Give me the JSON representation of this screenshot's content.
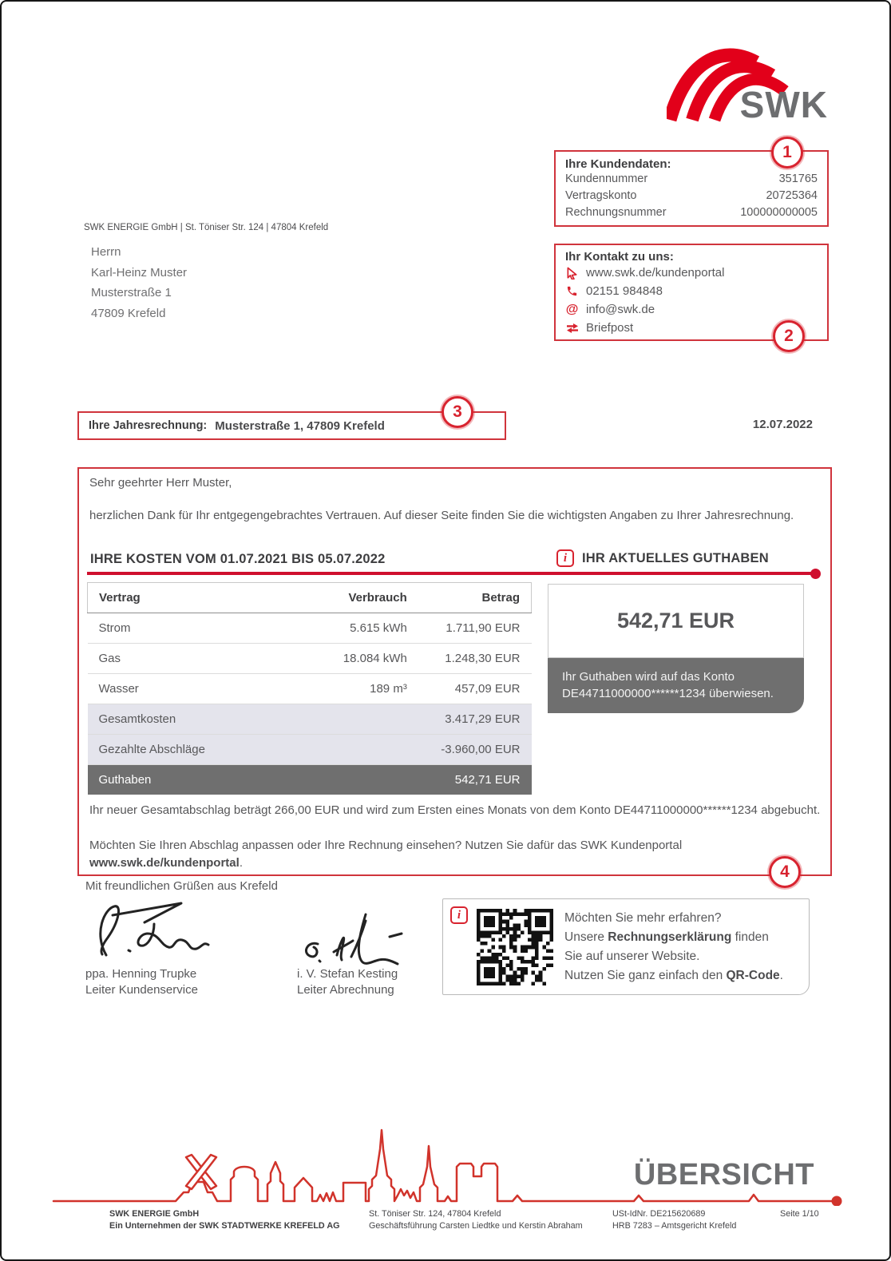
{
  "logo": {
    "brand": "SWK"
  },
  "date": "12.07.2022",
  "sender_line": "SWK ENERGIE GmbH | St. Töniser Str. 124 | 47804 Krefeld",
  "recipient": {
    "line1": "Herrn",
    "line2": "Karl-Heinz Muster",
    "line3": "Musterstraße 1",
    "line4": "47809 Krefeld"
  },
  "customer_box": {
    "badge": "1",
    "title": "Ihre Kundendaten:",
    "rows": [
      {
        "label": "Kundennummer",
        "value": "351765"
      },
      {
        "label": "Vertragskonto",
        "value": "20725364"
      },
      {
        "label": "Rechnungsnummer",
        "value": "100000000005"
      }
    ]
  },
  "contact_box": {
    "badge": "2",
    "title": "Ihr Kontakt zu uns:",
    "items": [
      {
        "icon": "cursor-icon",
        "text": "www.swk.de/kundenportal"
      },
      {
        "icon": "phone-icon",
        "text": "02151 984848"
      },
      {
        "icon": "at-icon",
        "glyph": "@",
        "text": "info@swk.de"
      },
      {
        "icon": "mail-arrows-icon",
        "text": "Briefpost"
      }
    ]
  },
  "invoice_bar": {
    "badge": "3",
    "label": "Ihre Jahresrechnung:",
    "value": "Musterstraße 1, 47809 Krefeld"
  },
  "letter": {
    "badge": "4",
    "greeting": "Sehr geehrter Herr Muster,",
    "intro": "herzlichen Dank für Ihr entgegengebrachtes Vertrauen. Auf dieser Seite finden Sie die wichtigsten Angaben zu Ihrer Jahresrechnung.",
    "costs_heading": "IHRE KOSTEN VOM 01.07.2021 BIS 05.07.2022",
    "balance_heading": "IHR AKTUELLES GUTHABEN",
    "info_glyph": "i",
    "table": {
      "headers": [
        "Vertrag",
        "Verbrauch",
        "Betrag"
      ],
      "rows": [
        [
          "Strom",
          "5.615 kWh",
          "1.711,90 EUR"
        ],
        [
          "Gas",
          "18.084 kWh",
          "1.248,30 EUR"
        ],
        [
          "Wasser",
          "189 m³",
          "457,09 EUR"
        ]
      ],
      "summary": [
        [
          "Gesamtkosten",
          "3.417,29 EUR"
        ],
        [
          "Gezahlte Abschläge",
          "-3.960,00 EUR"
        ]
      ],
      "total": [
        "Guthaben",
        "542,71 EUR"
      ]
    },
    "balance_card": {
      "amount": "542,71 EUR",
      "note": "Ihr Guthaben wird auf das Konto DE44711000000******1234 überwiesen."
    },
    "para1": "Ihr neuer Gesamtabschlag beträgt 266,00 EUR und wird zum Ersten eines Monats von dem Konto DE44711000000******1234 abgebucht.",
    "para2_prefix": "Möchten Sie Ihren Abschlag anpassen oder Ihre Rechnung einsehen? Nutzen Sie dafür das SWK Kundenportal ",
    "para2_bold": "www.swk.de/kundenportal",
    "para2_suffix": "."
  },
  "closing": "Mit freundlichen Grüßen aus Krefeld",
  "signatures": [
    {
      "name": "ppa. Henning Trupke",
      "role": "Leiter Kundenservice"
    },
    {
      "name": "i. V. Stefan Kesting",
      "role": "Leiter Abrechnung"
    }
  ],
  "qr_box": {
    "info_glyph": "i",
    "line1": "Möchten Sie mehr erfahren?",
    "line2_pre": "Unsere ",
    "line2_bold": "Rechnungserklärung",
    "line2_post": " finden",
    "line3": "Sie auf unserer Website.",
    "line4_pre": "Nutzen Sie ganz einfach den ",
    "line4_bold": "QR-Code",
    "line4_post": "."
  },
  "overview_label": "ÜBERSICHT",
  "footer": {
    "col1_line1": "SWK ENERGIE GmbH",
    "col1_line2": "Ein Unternehmen der SWK STADTWERKE KREFELD AG",
    "col2_line1": "St. Töniser Str. 124, 47804 Krefeld",
    "col2_line2": "Geschäftsführung Carsten Liedtke und Kerstin Abraham",
    "col3_line1": "USt-IdNr. DE215620689",
    "col3_line2": "HRB 7283 – Amtsgericht Krefeld",
    "page": "Seite 1/10"
  },
  "colors": {
    "brand_red": "#e2001a",
    "rule_red": "#cf0f2e",
    "box_border_red": "#d0343c",
    "badge_red": "#d8232f",
    "total_row_gray": "#6f6f6f",
    "summary_row_gray": "#e4e4ec",
    "text_gray": "#58585a",
    "heading_gray": "#3d3d3f"
  }
}
